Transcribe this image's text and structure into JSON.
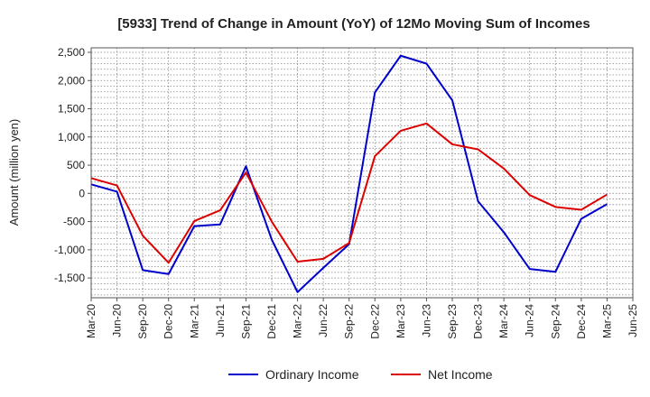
{
  "chart_data": {
    "type": "line",
    "title": "[5933]  Trend of Change in Amount (YoY) of 12Mo Moving Sum of Incomes",
    "xlabel": "",
    "ylabel": "Amount (million yen)",
    "ylim": [
      -1850,
      2580
    ],
    "yticks": [
      2500,
      2000,
      1500,
      1000,
      500,
      0,
      -500,
      -1000,
      -1500
    ],
    "ytick_labels": [
      "2,500",
      "2,000",
      "1,500",
      "1,000",
      "500",
      "0",
      "-500",
      "-1,000",
      "-1,500"
    ],
    "categories": [
      "Mar-20",
      "Jun-20",
      "Sep-20",
      "Dec-20",
      "Mar-21",
      "Jun-21",
      "Sep-21",
      "Dec-21",
      "Mar-22",
      "Jun-22",
      "Sep-22",
      "Dec-22",
      "Mar-23",
      "Jun-23",
      "Sep-23",
      "Dec-23",
      "Mar-24",
      "Jun-24",
      "Sep-24",
      "Dec-24",
      "Mar-25",
      "Jun-25"
    ],
    "grid": true,
    "legend_position": "bottom",
    "series": [
      {
        "name": "Ordinary Income",
        "color": "#0000cc",
        "values": [
          160,
          30,
          -1360,
          -1430,
          -580,
          -550,
          480,
          -820,
          -1750,
          -1320,
          -900,
          1790,
          2440,
          2300,
          1650,
          -140,
          -690,
          -1340,
          -1390,
          -450,
          -190,
          null
        ]
      },
      {
        "name": "Net Income",
        "color": "#dd0000",
        "values": [
          270,
          140,
          -750,
          -1230,
          -490,
          -300,
          370,
          -500,
          -1210,
          -1160,
          -880,
          660,
          1110,
          1240,
          870,
          780,
          440,
          -30,
          -240,
          -290,
          -20,
          null
        ]
      }
    ]
  }
}
